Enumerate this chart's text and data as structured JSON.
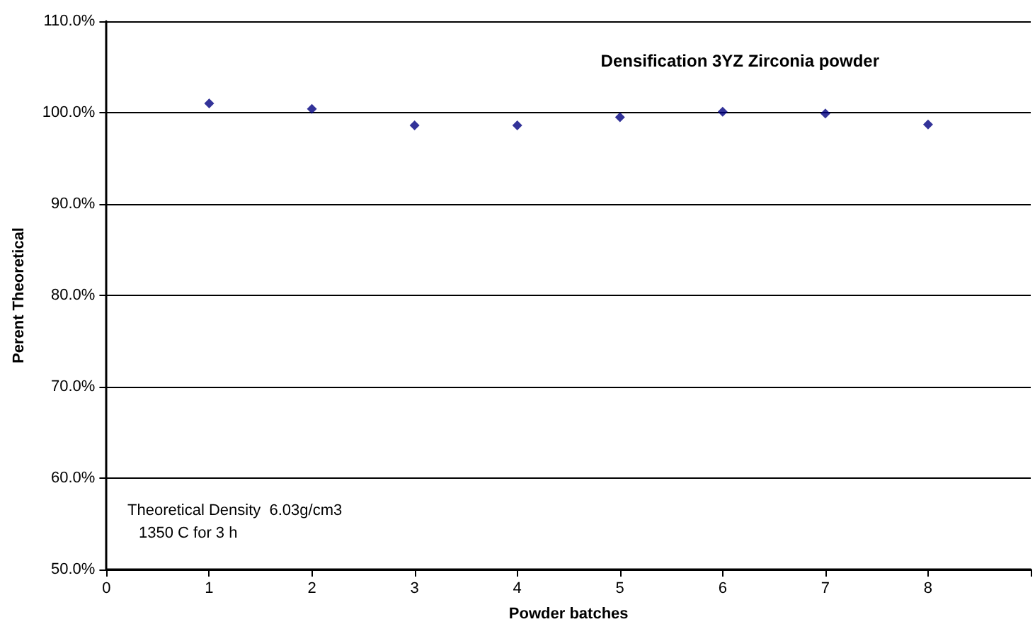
{
  "chart_data": {
    "type": "scatter",
    "title": "Densification 3YZ Zirconia powder",
    "xlabel": "Powder batches",
    "ylabel": "Perent Theoretical",
    "annotations": [
      "Theoretical Density  6.03g/cm3",
      "1350 C for 3 h"
    ],
    "x": [
      1,
      2,
      3,
      4,
      5,
      6,
      7,
      8
    ],
    "series": [
      {
        "color": "#000080",
        "values": [
          101.0,
          100.4,
          98.6,
          98.6,
          99.5,
          100.1,
          99.9,
          98.7
        ]
      }
    ],
    "xlim": [
      0,
      9
    ],
    "xticks": [
      0,
      1,
      2,
      3,
      4,
      5,
      6,
      7,
      8,
      {
        "value": 9,
        "label": null
      }
    ],
    "ylim": [
      50,
      110
    ],
    "yticks": [
      {
        "value": 50,
        "label": "50.0%"
      },
      {
        "value": 60,
        "label": "60.0%"
      },
      {
        "value": 70,
        "label": "70.0%"
      },
      {
        "value": 80,
        "label": "80.0%"
      },
      {
        "value": 90,
        "label": "90.0%"
      },
      {
        "value": 100,
        "label": "100.0%"
      },
      {
        "value": 110,
        "label": "110.0%"
      }
    ],
    "grid": "y",
    "marker": "diamond"
  }
}
